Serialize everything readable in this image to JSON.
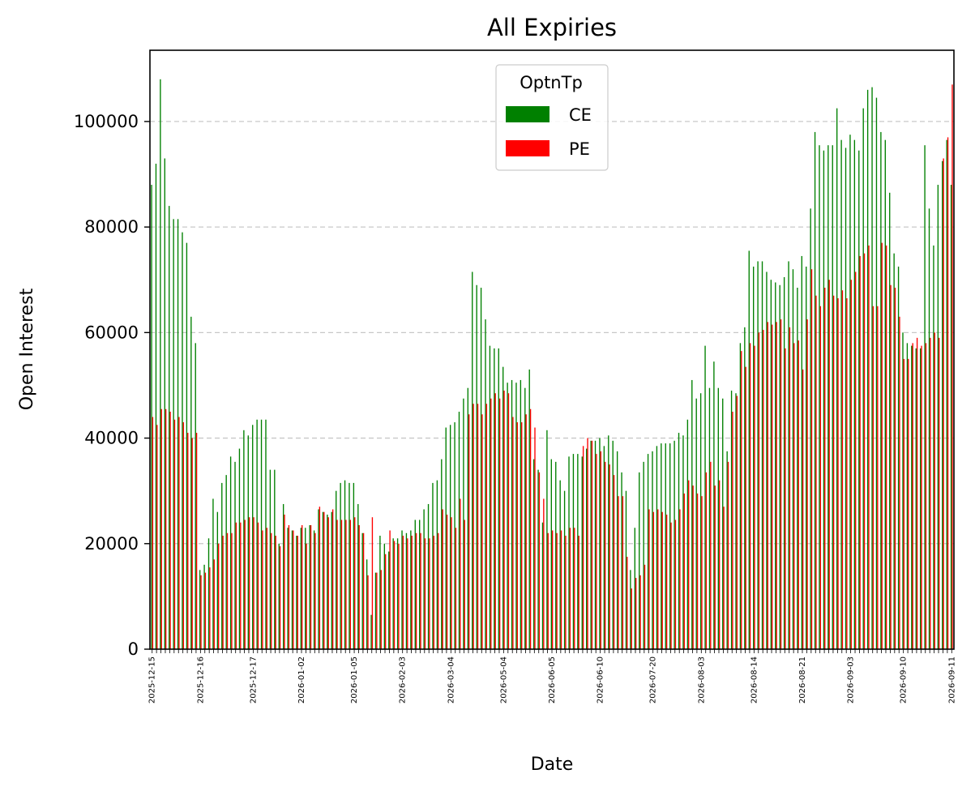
{
  "chart_data": {
    "type": "bar",
    "title": "All Expiries",
    "xlabel": "Date",
    "ylabel": "Open Interest",
    "ylim": [
      0,
      113500
    ],
    "yticks": [
      0,
      20000,
      40000,
      60000,
      80000,
      100000
    ],
    "grid": "y-dashed",
    "legend": {
      "title": "OptnTp",
      "placement": "top-center"
    },
    "colors": {
      "CE": "#008000",
      "PE": "#ff0000"
    },
    "x_start": "2025-12-15",
    "x_end": "2026-09-11",
    "series": [
      {
        "name": "CE",
        "values": [
          88000,
          92000,
          108000,
          93000,
          84000,
          81500,
          81500,
          79000,
          77000,
          63000,
          58000,
          15000,
          16000,
          21000,
          28500,
          26000,
          31500,
          33000,
          36500,
          35500,
          38000,
          41500,
          40500,
          42500,
          43500,
          43500,
          43500,
          34000,
          34000,
          20000,
          27500,
          23000,
          22500,
          21500,
          23000,
          23000,
          23500,
          22500,
          26500,
          26000,
          25500,
          26000,
          30000,
          31500,
          32000,
          31500,
          31500,
          27500,
          22000,
          17000,
          6500,
          14500,
          21500,
          20000,
          18500,
          21000,
          21000,
          22500,
          22000,
          22500,
          24500,
          24500,
          26500,
          27500,
          31500,
          32000,
          36000,
          42000,
          42500,
          43000,
          45000,
          47500,
          49500,
          71500,
          69000,
          68500,
          62500,
          57500,
          57000,
          57000,
          53500,
          50500,
          51000,
          50500,
          51000,
          49500,
          53000,
          36000,
          34000,
          24000,
          41500,
          36000,
          35500,
          32000,
          30000,
          36500,
          37000,
          37000,
          36500,
          38000,
          39500,
          39500,
          40000,
          38500,
          40500,
          39500,
          37500,
          33500,
          30000,
          15000,
          23000,
          33500,
          35500,
          37000,
          37500,
          38500,
          39000,
          39000,
          39000,
          39500,
          41000,
          40500,
          43500,
          51000,
          47500,
          48500,
          57500,
          49500,
          54500,
          49500,
          47500,
          37500,
          49000,
          48500,
          58000,
          61000,
          75500,
          72500,
          73500,
          73500,
          71500,
          70000,
          69500,
          69000,
          70500,
          73500,
          72000,
          68500,
          74500,
          72500,
          83500,
          98000,
          95500,
          94500,
          95500,
          95500,
          102500,
          96500,
          95000,
          97500,
          96500,
          94500,
          102500,
          106000,
          106500,
          104500,
          98000,
          96500,
          86500,
          75000,
          72500,
          60000,
          58000,
          57500,
          57000,
          57000,
          95500,
          83500,
          76500,
          88000,
          92500,
          96500,
          88000
        ]
      },
      {
        "name": "PE",
        "values": [
          44000,
          42500,
          45500,
          45500,
          45000,
          43500,
          44000,
          43000,
          41000,
          40000,
          41000,
          14000,
          14500,
          15500,
          17000,
          20000,
          21500,
          22000,
          22000,
          24000,
          24000,
          24500,
          25000,
          25000,
          24000,
          22500,
          23000,
          22000,
          21500,
          19500,
          25500,
          23500,
          22500,
          21500,
          23500,
          20000,
          23500,
          22000,
          27000,
          26000,
          25000,
          26500,
          24500,
          24500,
          24500,
          24500,
          25000,
          23500,
          22000,
          14000,
          25000,
          14500,
          15000,
          18000,
          22500,
          20500,
          20000,
          21500,
          21000,
          21500,
          22000,
          22000,
          21000,
          21000,
          21500,
          22000,
          26500,
          25500,
          25000,
          23000,
          28500,
          24500,
          44500,
          46500,
          46500,
          44500,
          46500,
          47500,
          48500,
          47500,
          49000,
          48500,
          44000,
          43000,
          43000,
          44500,
          45500,
          42000,
          33500,
          28500,
          22000,
          22500,
          22000,
          22500,
          21500,
          23000,
          23000,
          21500,
          38500,
          40000,
          39500,
          37000,
          37500,
          35500,
          35000,
          33000,
          29000,
          29000,
          17500,
          11500,
          13500,
          14000,
          16000,
          26500,
          26000,
          26500,
          26000,
          25500,
          24000,
          24500,
          26500,
          29500,
          32000,
          31000,
          29500,
          29000,
          33500,
          35500,
          31000,
          32000,
          27000,
          35500,
          45000,
          48000,
          56500,
          53500,
          58000,
          57500,
          60000,
          60500,
          62000,
          61500,
          62000,
          62500,
          57000,
          61000,
          58000,
          58500,
          53000,
          62500,
          72000,
          67000,
          65000,
          68500,
          70000,
          67000,
          66500,
          68000,
          66500,
          70000,
          71500,
          74500,
          75000,
          76500,
          65000,
          65000,
          77000,
          76500,
          69000,
          68500,
          63000,
          55000,
          55000,
          58000,
          59000,
          57500,
          58000,
          59000,
          60000,
          59000,
          93000,
          97000,
          107000
        ]
      }
    ],
    "x_tick_labels_shown": [
      "2025-12-15",
      "2025-12-16",
      "2025-12-17",
      "2026-01-02",
      "2026-01-05",
      "2026-02-03",
      "2026-03-04",
      "2026-05-04",
      "2026-06-05",
      "2026-06-10",
      "2026-07-20",
      "2026-08-03",
      "2026-08-14",
      "2026-08-21",
      "2026-09-03",
      "2026-09-10",
      "2026-09-11"
    ]
  }
}
